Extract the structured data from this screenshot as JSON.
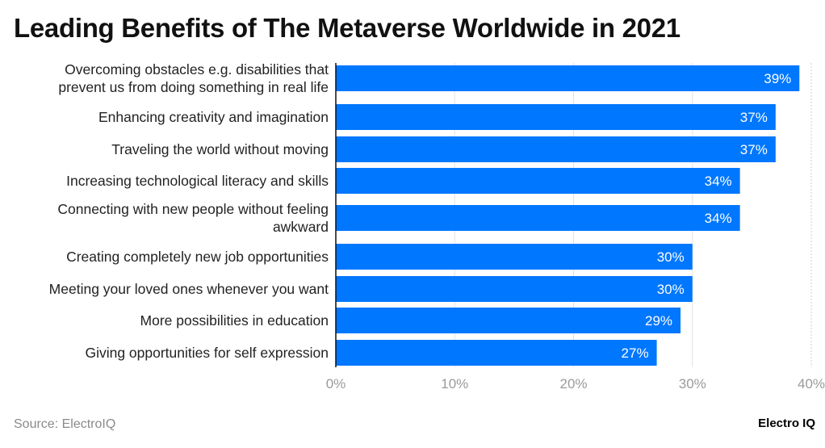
{
  "chart_data": {
    "type": "bar",
    "orientation": "horizontal",
    "title": "Leading Benefits of The Metaverse Worldwide in 2021",
    "categories": [
      [
        "Overcoming obstacles e.g. disabilities that",
        "prevent us from doing something in real life"
      ],
      [
        "Enhancing creativity and imagination"
      ],
      [
        "Traveling the world without moving"
      ],
      [
        "Increasing technological literacy and skills"
      ],
      [
        "Connecting with new people without feeling",
        "awkward"
      ],
      [
        "Creating completely new job opportunities"
      ],
      [
        "Meeting your loved ones whenever you want"
      ],
      [
        "More possibilities in education"
      ],
      [
        "Giving opportunities for self expression"
      ]
    ],
    "values": [
      39,
      37,
      37,
      34,
      34,
      30,
      30,
      29,
      27
    ],
    "value_labels": [
      "39%",
      "37%",
      "37%",
      "34%",
      "34%",
      "30%",
      "30%",
      "29%",
      "27%"
    ],
    "xlim": [
      0,
      40
    ],
    "x_ticks": [
      "0%",
      "10%",
      "20%",
      "30%",
      "40%"
    ],
    "grid": true,
    "bar_color": "#0077ff"
  },
  "footer": {
    "source": "Source: ElectroIQ",
    "brand": "Electro IQ"
  }
}
